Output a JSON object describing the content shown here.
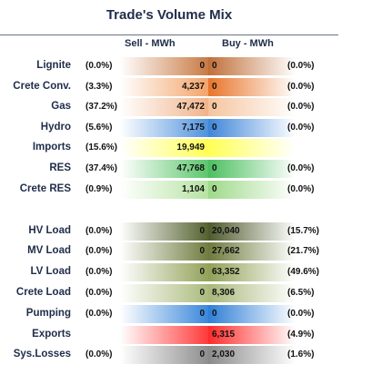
{
  "title": "Trade's Volume Mix",
  "headers": {
    "sell": "Sell - MWh",
    "buy": "Buy - MWh"
  },
  "chart_data": {
    "type": "table",
    "title": "Trade's Volume Mix",
    "columns": [
      "Sell - MWh",
      "Buy - MWh"
    ],
    "rows": [
      {
        "label": "Lignite",
        "sell_pct": "(0.0%)",
        "sell": "0",
        "buy": "0",
        "buy_pct": "(0.0%)",
        "color": "#c0703a",
        "sell_fill": "#c97a44"
      },
      {
        "label": "Crete Conv.",
        "sell_pct": "(3.3%)",
        "sell": "4,237",
        "buy": "0",
        "buy_pct": "(0.0%)",
        "color": "#e8752a",
        "sell_fill": "#f3a46a"
      },
      {
        "label": "Gas",
        "sell_pct": "(37.2%)",
        "sell": "47,472",
        "buy": "0",
        "buy_pct": "(0.0%)",
        "color": "#f5c49e",
        "sell_fill": "#f0b48a"
      },
      {
        "label": "Hydro",
        "sell_pct": "(5.6%)",
        "sell": "7,175",
        "buy": "0",
        "buy_pct": "(0.0%)",
        "color": "#3f86d9",
        "sell_fill": "#4f92dd"
      },
      {
        "label": "Imports",
        "sell_pct": "(15.6%)",
        "sell": "19,949",
        "buy": "",
        "buy_pct": "",
        "color": "#ffff55",
        "sell_fill": "#ffff55"
      },
      {
        "label": "RES",
        "sell_pct": "(37.4%)",
        "sell": "47,768",
        "buy": "0",
        "buy_pct": "(0.0%)",
        "color": "#4bbf5f",
        "sell_fill": "#5cc66c"
      },
      {
        "label": "Crete RES",
        "sell_pct": "(0.9%)",
        "sell": "1,104",
        "buy": "0",
        "buy_pct": "(0.0%)",
        "color": "#9fd98a",
        "sell_fill": "#b6e3a2"
      },
      {
        "label": "HV Load",
        "sell_pct": "(0.0%)",
        "sell": "0",
        "buy": "20,040",
        "buy_pct": "(15.7%)",
        "color": "#4d5a2c",
        "sell_fill": "#556230"
      },
      {
        "label": "MV Load",
        "sell_pct": "(0.0%)",
        "sell": "0",
        "buy": "27,662",
        "buy_pct": "(21.7%)",
        "color": "#6b7a3c",
        "sell_fill": "#6f7e40"
      },
      {
        "label": "LV Load",
        "sell_pct": "(0.0%)",
        "sell": "0",
        "buy": "63,352",
        "buy_pct": "(49.6%)",
        "color": "#8fa055",
        "sell_fill": "#92a35a"
      },
      {
        "label": "Crete Load",
        "sell_pct": "(0.0%)",
        "sell": "0",
        "buy": "8,306",
        "buy_pct": "(6.5%)",
        "color": "#a7b87a",
        "sell_fill": "#abbc7e"
      },
      {
        "label": "Pumping",
        "sell_pct": "(0.0%)",
        "sell": "0",
        "buy": "0",
        "buy_pct": "(0.0%)",
        "color": "#2f7fd6",
        "sell_fill": "#3a88db"
      },
      {
        "label": "Exports",
        "sell_pct": "",
        "sell": "",
        "buy": "6,315",
        "buy_pct": "(4.9%)",
        "color": "#ff2a2a",
        "sell_fill": "#ff3a3a"
      },
      {
        "label": "Sys.Losses",
        "sell_pct": "(0.0%)",
        "sell": "0",
        "buy": "2,030",
        "buy_pct": "(1.6%)",
        "color": "#8a8a8a",
        "sell_fill": "#8e8e8e"
      }
    ]
  }
}
